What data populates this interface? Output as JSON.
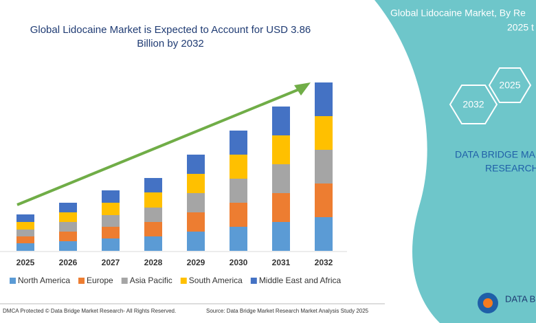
{
  "chart_data": {
    "type": "bar",
    "stacked": true,
    "title": "Global Lidocaine Market is Expected to Account for USD 3.86",
    "subtitle": "Billion by 2032",
    "categories": [
      "2025",
      "2026",
      "2027",
      "2028",
      "2029",
      "2030",
      "2031",
      "2032"
    ],
    "series": [
      {
        "name": "North America",
        "color": "#5b9bd5",
        "values": [
          11,
          14,
          18,
          21,
          28,
          35,
          42,
          49
        ]
      },
      {
        "name": "Europe",
        "color": "#ed7d31",
        "values": [
          10,
          14,
          17,
          21,
          28,
          35,
          42,
          49
        ]
      },
      {
        "name": "Asia Pacific",
        "color": "#a5a5a5",
        "values": [
          10,
          14,
          17,
          21,
          28,
          35,
          42,
          49
        ]
      },
      {
        "name": "South America",
        "color": "#ffc000",
        "values": [
          11,
          14,
          18,
          22,
          28,
          35,
          42,
          49
        ]
      },
      {
        "name": "Middle East and Africa",
        "color": "#4472c4",
        "values": [
          11,
          14,
          18,
          21,
          28,
          35,
          42,
          49
        ]
      }
    ],
    "ylim": [
      0,
      250
    ]
  },
  "panel": {
    "title": "Global Lidocaine Market, By Re",
    "subtitle": "2025 t",
    "hexagons": [
      "2032",
      "2025"
    ],
    "brand": [
      "DATA BRIDGE MA",
      "RESEARCH"
    ]
  },
  "footer": {
    "copyright": "DMCA Protected © Data Bridge Market Research- All Rights Reserved.",
    "source": "Source: Data Bridge Market Research Market Analysis Study 2025",
    "logo": "DATA B"
  }
}
